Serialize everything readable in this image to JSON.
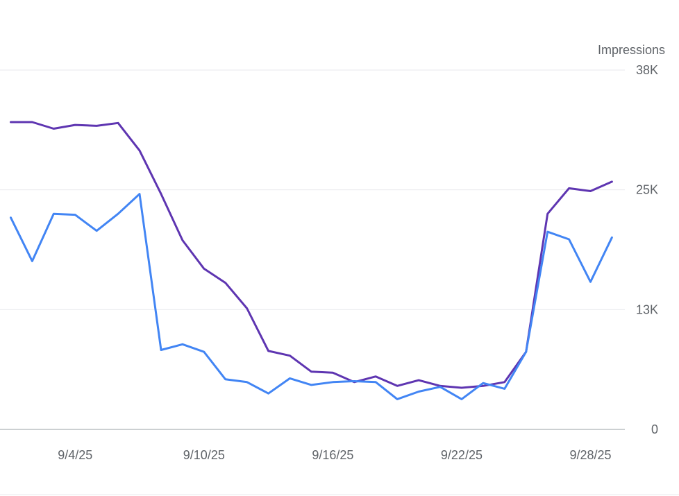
{
  "chart_data": {
    "type": "line",
    "y_axis": {
      "label": "Impressions",
      "side": "right",
      "range": [
        0,
        38000
      ],
      "ticks": [
        {
          "value": 0,
          "label": "0"
        },
        {
          "value": 12667,
          "label": "13K"
        },
        {
          "value": 25333,
          "label": "25K"
        },
        {
          "value": 38000,
          "label": "38K"
        }
      ]
    },
    "x_axis": {
      "range": [
        0.5,
        29.6
      ],
      "ticks": [
        {
          "value": 4,
          "label": "9/4/25"
        },
        {
          "value": 10,
          "label": "9/10/25"
        },
        {
          "value": 16,
          "label": "9/16/25"
        },
        {
          "value": 22,
          "label": "9/22/25"
        },
        {
          "value": 28,
          "label": "9/28/25"
        }
      ]
    },
    "grid": true,
    "x": [
      1,
      2,
      3,
      4,
      5,
      6,
      7,
      8,
      9,
      10,
      11,
      12,
      13,
      14,
      15,
      16,
      17,
      18,
      19,
      20,
      21,
      22,
      23,
      24,
      25,
      26,
      27,
      28,
      29
    ],
    "series": [
      {
        "color": "#5e35b1",
        "values": [
          32500,
          32500,
          31800,
          32200,
          32100,
          32400,
          29500,
          24900,
          20000,
          17000,
          15500,
          12800,
          8300,
          7800,
          6100,
          6000,
          5000,
          5600,
          4600,
          5200,
          4600,
          4400,
          4600,
          5000,
          8200,
          22800,
          25500,
          25200,
          26200
        ]
      },
      {
        "color": "#4285f4",
        "values": [
          22400,
          17800,
          22800,
          22700,
          21000,
          22800,
          24900,
          8400,
          9000,
          8200,
          5300,
          5000,
          3800,
          5400,
          4700,
          5000,
          5100,
          5000,
          3200,
          4000,
          4500,
          3200,
          4900,
          4300,
          8200,
          20900,
          20100,
          15600,
          20300
        ]
      }
    ]
  }
}
